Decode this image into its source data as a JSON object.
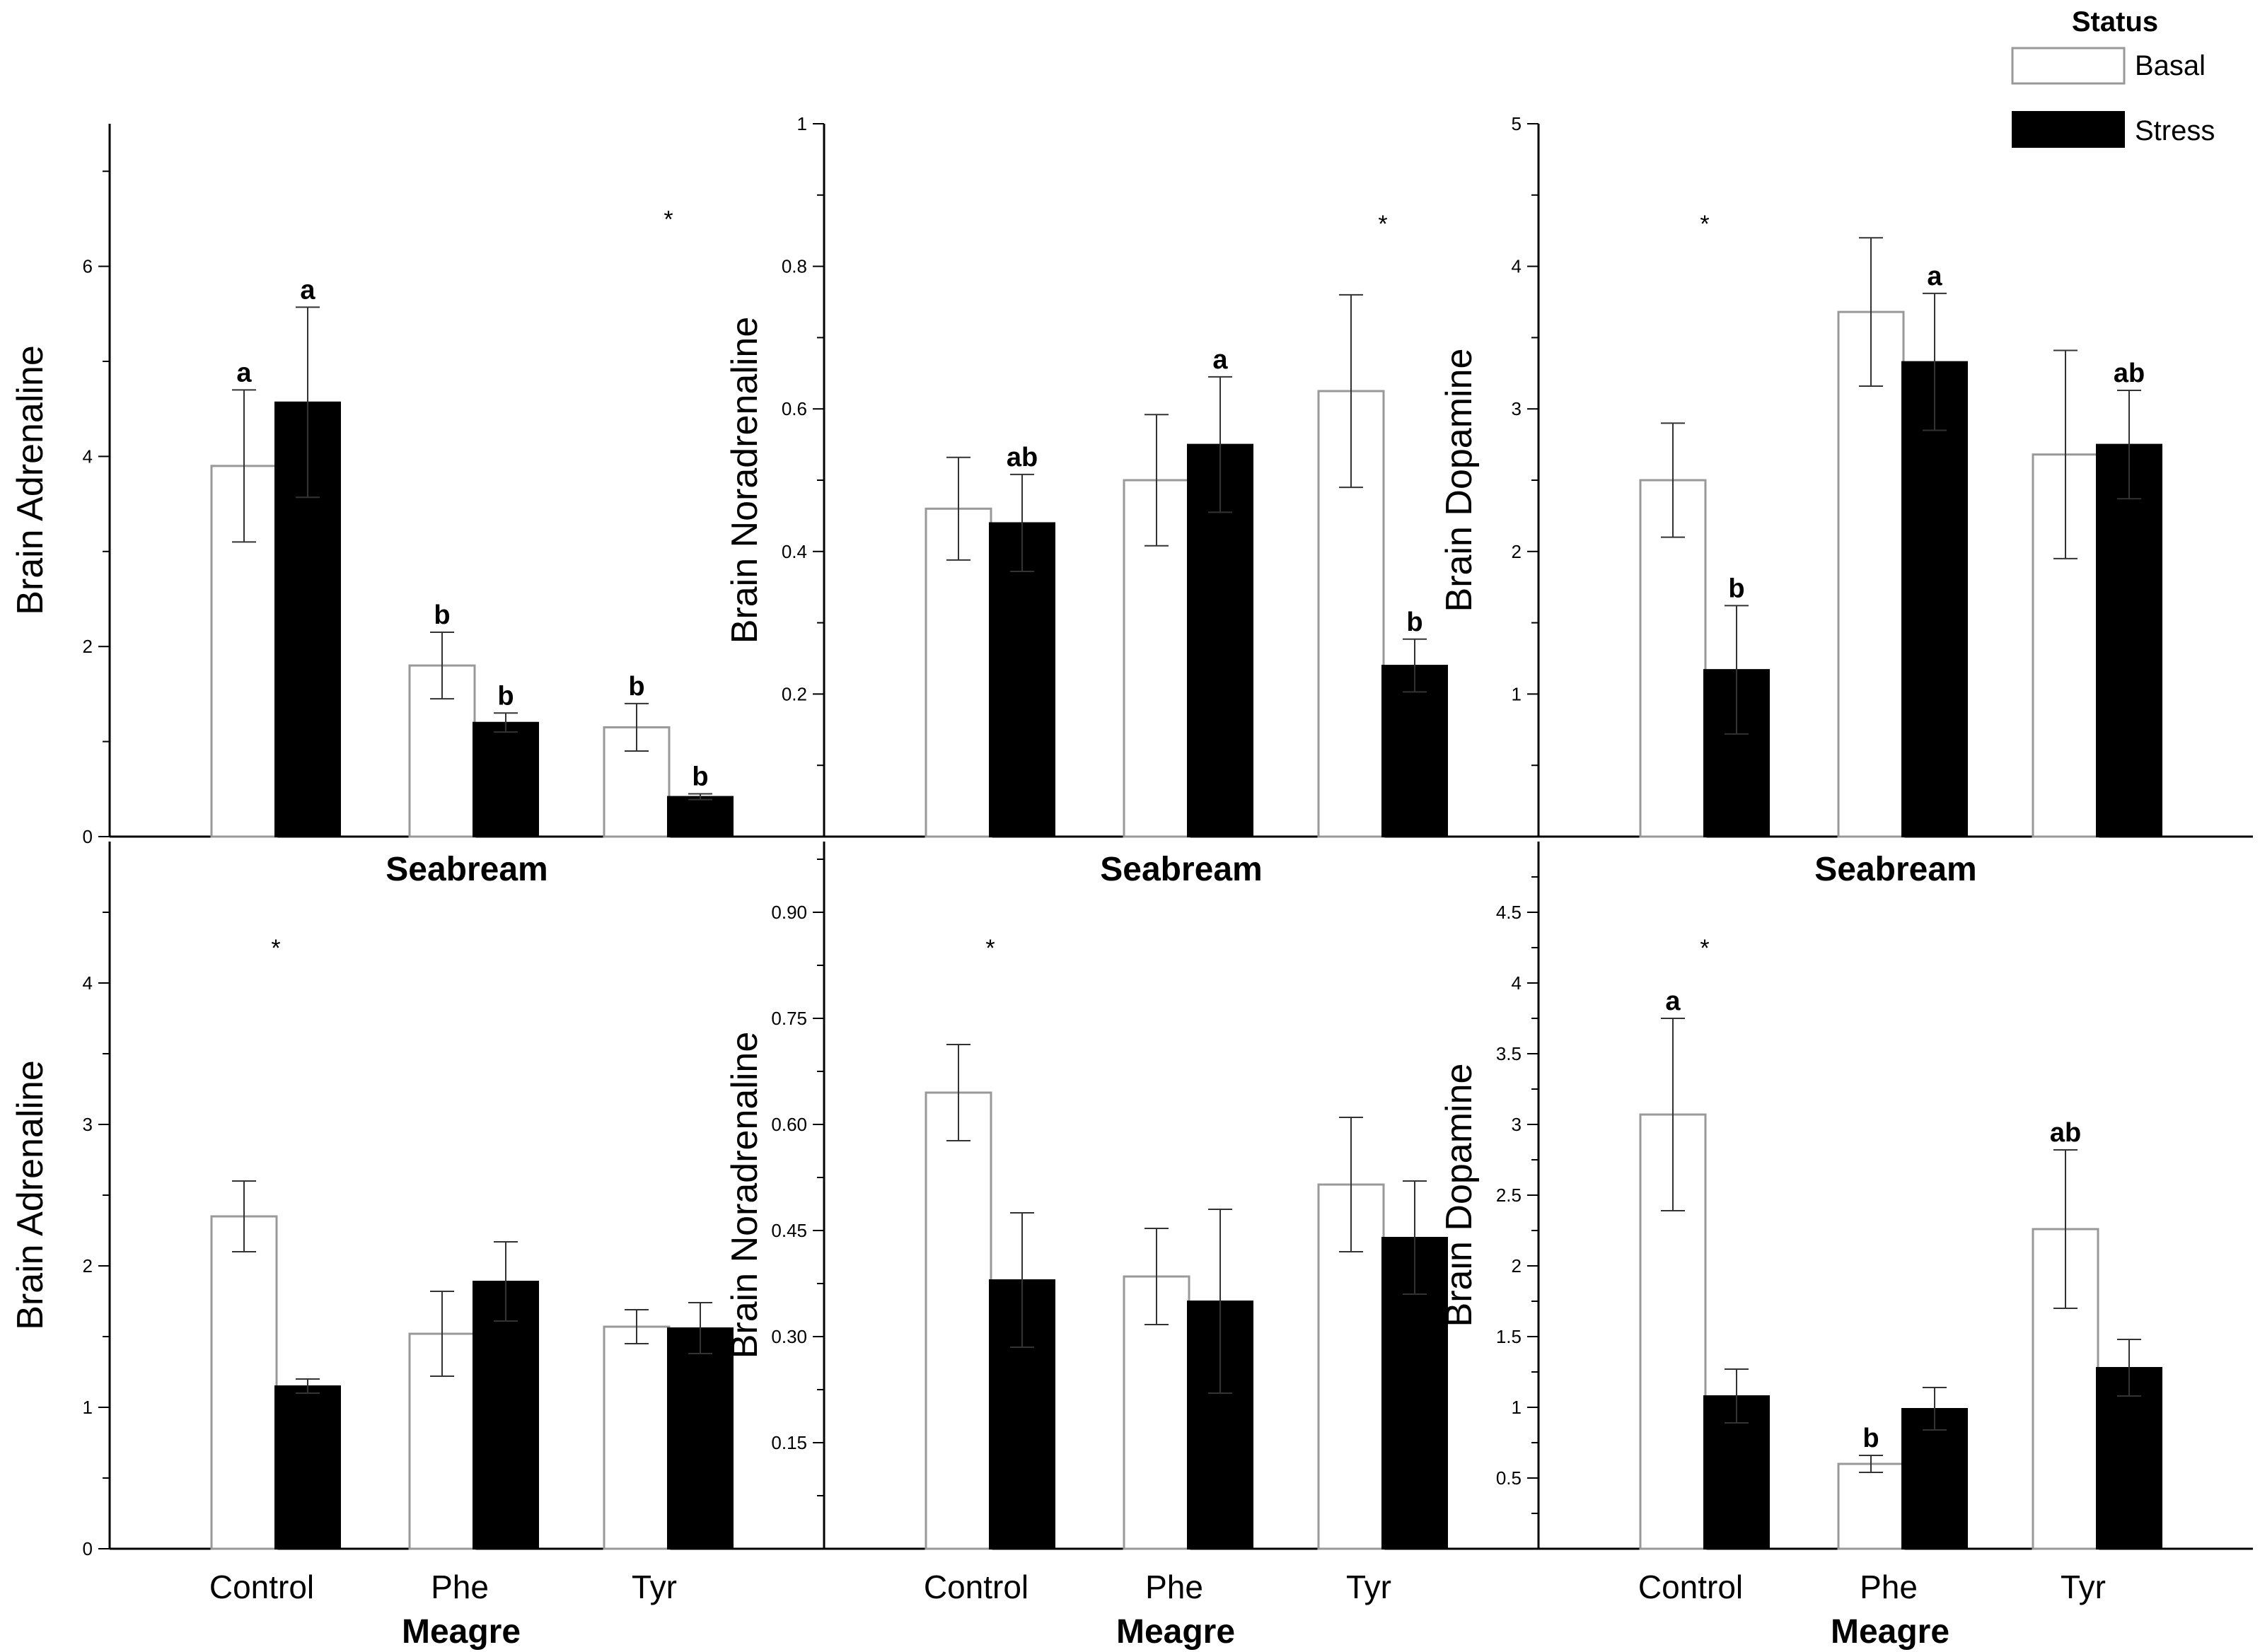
{
  "legend": {
    "title": "Status",
    "items": [
      {
        "label": "Basal",
        "color": "#ffffff"
      },
      {
        "label": "Stress",
        "color": "#000000"
      }
    ]
  },
  "colors": {
    "basal_fill": "#ffffff",
    "stress_fill": "#000000",
    "basal_stroke": "#999999",
    "axis": "#000000"
  },
  "chart_data": [
    {
      "type": "bar",
      "row": "top",
      "title": "",
      "ylabel": "Brain Adrenaline",
      "xlabel": "",
      "ylim": [
        0,
        7.5
      ],
      "yticks": [
        0,
        2,
        4,
        6
      ],
      "ytick_labels": [
        "0",
        "2",
        "4",
        "6"
      ],
      "categories": [
        "Control",
        "Phe",
        "Tyr"
      ],
      "category_labels_shown": false,
      "series": [
        {
          "name": "Basal",
          "values": [
            3.9,
            1.8,
            1.15
          ],
          "errors": [
            0.8,
            0.35,
            0.25
          ],
          "letters": [
            "a",
            "b",
            "b"
          ]
        },
        {
          "name": "Stress",
          "values": [
            4.57,
            1.2,
            0.42
          ],
          "errors": [
            1.0,
            0.1,
            0.03
          ],
          "letters": [
            "a",
            "b",
            "b"
          ]
        }
      ],
      "asterisks": [
        {
          "category": "Tyr",
          "y": 6.5
        }
      ]
    },
    {
      "type": "bar",
      "row": "top",
      "title": "",
      "ylabel": "Brain Noradrenaline",
      "xlabel": "",
      "ylim": [
        0,
        1
      ],
      "yticks": [
        0.2,
        0.4,
        0.6,
        0.8,
        1
      ],
      "ytick_labels": [
        "0.2",
        "0.4",
        "0.6",
        "0.8",
        "1"
      ],
      "categories": [
        "Control",
        "Phe",
        "Tyr"
      ],
      "category_labels_shown": false,
      "series": [
        {
          "name": "Basal",
          "values": [
            0.46,
            0.5,
            0.625
          ],
          "errors": [
            0.072,
            0.092,
            0.135
          ],
          "letters": [
            "",
            "",
            ""
          ]
        },
        {
          "name": "Stress",
          "values": [
            0.44,
            0.55,
            0.24
          ],
          "errors": [
            0.068,
            0.095,
            0.037
          ],
          "letters": [
            "ab",
            "a",
            "b"
          ]
        }
      ],
      "asterisks": [
        {
          "category": "Tyr",
          "y": 0.86
        }
      ]
    },
    {
      "type": "bar",
      "row": "top",
      "title": "",
      "ylabel": "Brain Dopamine",
      "xlabel": "",
      "ylim": [
        0,
        5
      ],
      "yticks": [
        1,
        2,
        3,
        4,
        5
      ],
      "ytick_labels": [
        "1",
        "2",
        "3",
        "4",
        "5"
      ],
      "categories": [
        "Control",
        "Phe",
        "Tyr"
      ],
      "category_labels_shown": false,
      "series": [
        {
          "name": "Basal",
          "values": [
            2.5,
            3.68,
            2.68
          ],
          "errors": [
            0.4,
            0.52,
            0.73
          ],
          "letters": [
            "",
            "",
            ""
          ]
        },
        {
          "name": "Stress",
          "values": [
            1.17,
            3.33,
            2.75
          ],
          "errors": [
            0.45,
            0.48,
            0.38
          ],
          "letters": [
            "b",
            "a",
            "ab"
          ]
        }
      ],
      "asterisks": [
        {
          "category": "Control",
          "y": 4.3
        }
      ]
    },
    {
      "type": "bar",
      "row": "bottom",
      "title": "Seabream",
      "ylabel": "Brain Adrenaline",
      "xlabel": "Meagre",
      "ylim": [
        0,
        5
      ],
      "yticks": [
        0,
        1,
        2,
        3,
        4
      ],
      "ytick_labels": [
        "0",
        "1",
        "2",
        "3",
        "4"
      ],
      "categories": [
        "Control",
        "Phe",
        "Tyr"
      ],
      "category_labels_shown": true,
      "series": [
        {
          "name": "Basal",
          "values": [
            2.35,
            1.52,
            1.57
          ],
          "errors": [
            0.25,
            0.3,
            0.12
          ],
          "letters": [
            "",
            "",
            ""
          ]
        },
        {
          "name": "Stress",
          "values": [
            1.15,
            1.89,
            1.56
          ],
          "errors": [
            0.05,
            0.28,
            0.18
          ],
          "letters": [
            "",
            "",
            ""
          ]
        }
      ],
      "asterisks": [
        {
          "category": "Control",
          "y": 4.25
        }
      ]
    },
    {
      "type": "bar",
      "row": "bottom",
      "title": "Seabream",
      "ylabel": "Brain Noradrenaline",
      "xlabel": "Meagre",
      "ylim": [
        0,
        1
      ],
      "yticks": [
        0.15,
        0.3,
        0.45,
        0.6,
        0.75,
        0.9
      ],
      "ytick_labels": [
        "0.15",
        "0.30",
        "0.45",
        "0.60",
        "0.75",
        "0.90"
      ],
      "categories": [
        "Control",
        "Phe",
        "Tyr"
      ],
      "category_labels_shown": true,
      "series": [
        {
          "name": "Basal",
          "values": [
            0.645,
            0.385,
            0.515
          ],
          "errors": [
            0.068,
            0.068,
            0.095
          ],
          "letters": [
            "",
            "",
            ""
          ]
        },
        {
          "name": "Stress",
          "values": [
            0.38,
            0.35,
            0.44
          ],
          "errors": [
            0.095,
            0.13,
            0.08
          ],
          "letters": [
            "",
            "",
            ""
          ]
        }
      ],
      "asterisks": [
        {
          "category": "Control",
          "y": 0.85
        }
      ]
    },
    {
      "type": "bar",
      "row": "bottom",
      "title": "Seabream",
      "ylabel": "Brain Dopamine",
      "xlabel": "Meagre",
      "ylim": [
        0,
        5
      ],
      "yticks": [
        0.5,
        1,
        1.5,
        2,
        2.5,
        3,
        3.5,
        4,
        4.5
      ],
      "ytick_labels": [
        "0.5",
        "1",
        "1.5",
        "2",
        "2.5",
        "3",
        "3.5",
        "4",
        "4.5"
      ],
      "categories": [
        "Control",
        "Phe",
        "Tyr"
      ],
      "category_labels_shown": true,
      "series": [
        {
          "name": "Basal",
          "values": [
            3.07,
            0.6,
            2.26
          ],
          "errors": [
            0.68,
            0.06,
            0.56
          ],
          "letters": [
            "a",
            "b",
            "ab"
          ]
        },
        {
          "name": "Stress",
          "values": [
            1.08,
            0.99,
            1.28
          ],
          "errors": [
            0.19,
            0.15,
            0.2
          ],
          "letters": [
            "",
            "",
            ""
          ]
        }
      ],
      "asterisks": [
        {
          "category": "Control",
          "y": 4.25
        }
      ]
    }
  ]
}
